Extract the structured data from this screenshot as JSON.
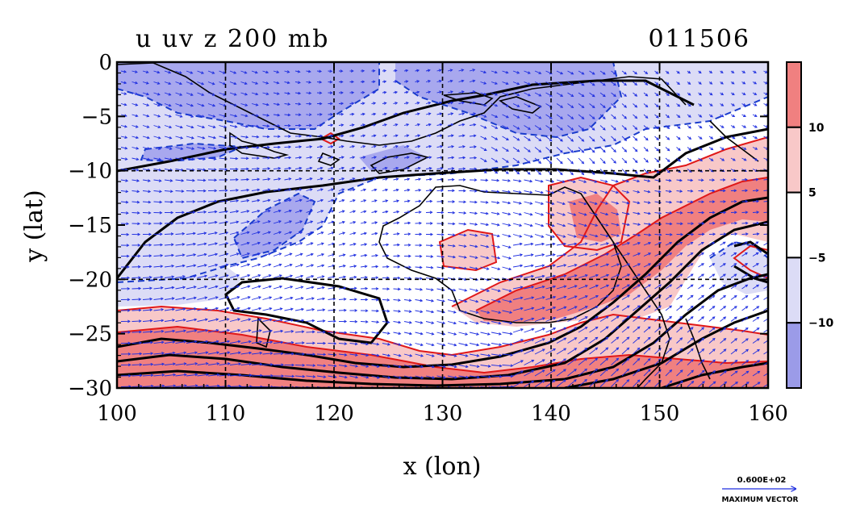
{
  "title_left": "u uv z 200 mb",
  "title_right": "011506",
  "xlabel": "x (lon)",
  "ylabel": "y (lat)",
  "x_ticks": [
    "100",
    "110",
    "120",
    "130",
    "140",
    "150",
    "160"
  ],
  "y_ticks": [
    "0",
    "−5",
    "−10",
    "−15",
    "−20",
    "−25",
    "−30"
  ],
  "colorbar": {
    "labels": [
      "10",
      "5",
      "−5",
      "−10"
    ],
    "bands": [
      "#f08080",
      "#f8c8c8",
      "#ffffff",
      "#dcdcf6",
      "#9b9be8"
    ]
  },
  "vector_ref": {
    "value": "0.600E+02",
    "label": "MAXIMUM VECTOR"
  },
  "colors": {
    "positive": "#f08080",
    "positive_light": "#f8c8c8",
    "negative_light": "#dcdcf6",
    "negative": "#a8a8ee",
    "vector": "#1f2fe0",
    "contour_neg": "#1a3ccc",
    "contour_pos": "#e01818",
    "height": "#000000"
  },
  "chart_data": {
    "type": "map",
    "x_range": [
      100,
      160
    ],
    "y_range": [
      -30,
      0
    ],
    "grid": true,
    "shading_levels": [
      -10,
      -5,
      5,
      10
    ]
  }
}
